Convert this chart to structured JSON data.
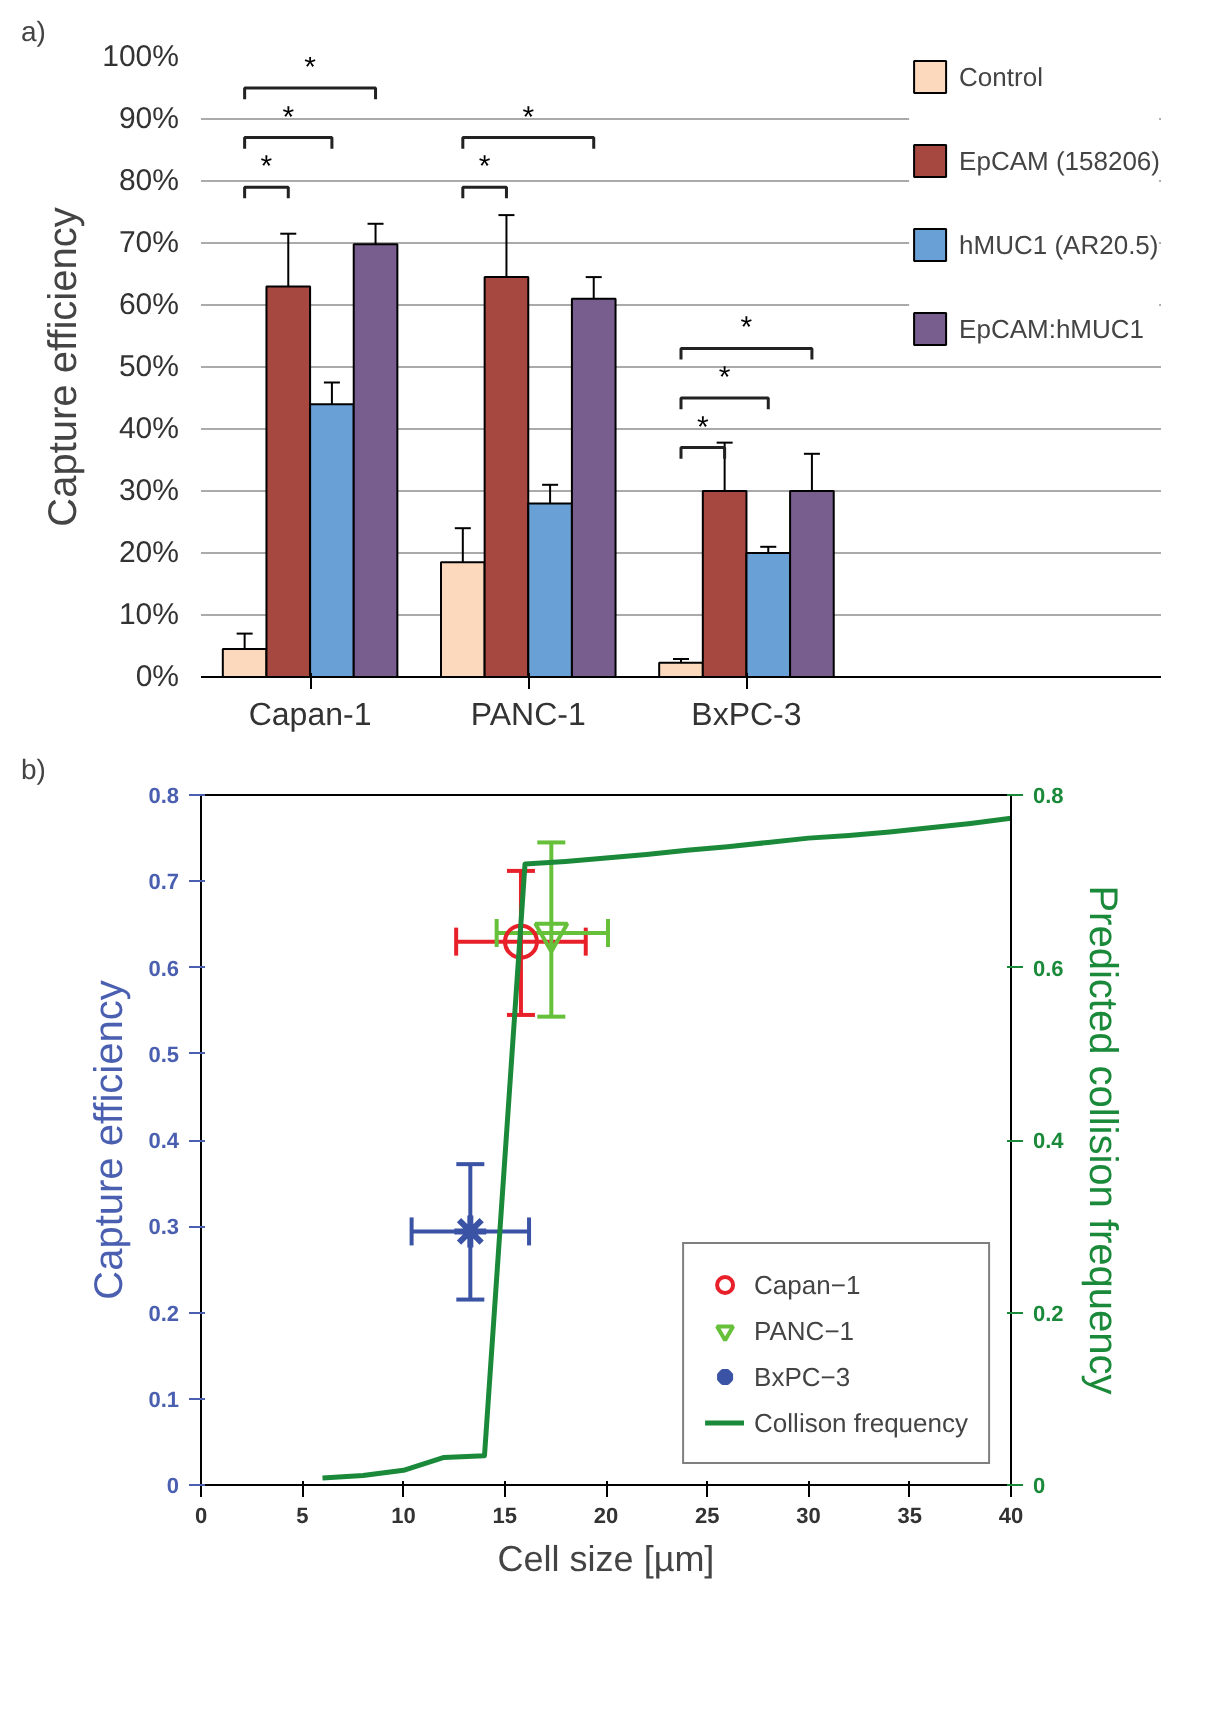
{
  "chart_data": [
    {
      "type": "bar",
      "ylabel": "Capture efficiency",
      "categories": [
        "Capan-1",
        "PANC-1",
        "BxPC-3"
      ],
      "series": [
        {
          "name": "Control",
          "color": "#fcd9bc",
          "values": [
            4.5,
            18.5,
            2.3
          ],
          "errors": [
            2.5,
            5.5,
            0.6
          ]
        },
        {
          "name": "EpCAM (158206)",
          "color": "#a64740",
          "values": [
            63,
            64.5,
            30
          ],
          "errors": [
            8.5,
            10,
            7.8
          ]
        },
        {
          "name": "hMUC1 (AR20.5)",
          "color": "#69a1d6",
          "values": [
            44,
            28,
            20
          ],
          "errors": [
            3.5,
            3,
            1
          ]
        },
        {
          "name": "EpCAM:hMUC1",
          "color": "#775e8f",
          "values": [
            69.8,
            61,
            30
          ],
          "errors": [
            3.3,
            3.5,
            6
          ]
        }
      ],
      "ylim": [
        0,
        100
      ],
      "yticks": [
        {
          "value": 0,
          "label": "0%"
        },
        {
          "value": 10,
          "label": "10%"
        },
        {
          "value": 20,
          "label": "20%"
        },
        {
          "value": 30,
          "label": "30%"
        },
        {
          "value": 40,
          "label": "40%"
        },
        {
          "value": 50,
          "label": "50%"
        },
        {
          "value": 60,
          "label": "60%"
        },
        {
          "value": 70,
          "label": "70%"
        },
        {
          "value": 80,
          "label": "80%"
        },
        {
          "value": 90,
          "label": "90%"
        },
        {
          "value": 100,
          "label": "100%"
        }
      ],
      "grid": "y",
      "legend": "right",
      "annotations": [
        "a)",
        "*",
        "*",
        "*",
        "*",
        "*",
        "*",
        "*",
        "*"
      ]
    },
    {
      "type": "scatter",
      "xlabel": "Cell size [µm]",
      "ylabel": "Capture efficiency",
      "y2label": "Predicted collision frequency",
      "series": [
        {
          "name": "Capan−1",
          "color": "#e8202a",
          "marker": "circle",
          "x": [
            15.8
          ],
          "values": [
            0.63
          ],
          "errors": [
            [
              0.545,
              0.712
            ]
          ],
          "xerrors": [
            [
              12.6,
              19.0
            ]
          ]
        },
        {
          "name": "PANC−1",
          "color": "#66c03a",
          "marker": "triangle",
          "x": [
            17.3
          ],
          "values": [
            0.64
          ],
          "errors": [
            [
              0.543,
              0.745
            ]
          ],
          "xerrors": [
            [
              14.6,
              20.1
            ]
          ]
        },
        {
          "name": "BxPC−3",
          "color": "#3a53a4",
          "marker": "cross",
          "x": [
            13.3
          ],
          "values": [
            0.294
          ],
          "errors": [
            [
              0.215,
              0.372
            ]
          ],
          "xerrors": [
            [
              10.4,
              16.2
            ]
          ]
        },
        {
          "name": "Collison frequency",
          "type": "line",
          "axis": "y2",
          "color": "#1a8a3a",
          "marker": "none",
          "x": [
            6,
            8,
            10,
            12,
            14,
            16,
            18,
            20,
            22,
            24,
            26,
            28,
            30,
            32,
            34,
            36,
            38,
            40
          ],
          "values": [
            0.008,
            0.011,
            0.017,
            0.032,
            0.034,
            0.72,
            0.723,
            0.727,
            0.731,
            0.736,
            0.74,
            0.745,
            0.75,
            0.753,
            0.757,
            0.762,
            0.767,
            0.773
          ]
        }
      ],
      "xlim": [
        0,
        40
      ],
      "xticks": [
        0,
        5,
        10,
        15,
        20,
        25,
        30,
        35,
        40
      ],
      "ylim": [
        0,
        0.8
      ],
      "yticks": [
        0,
        0.1,
        0.2,
        0.3,
        0.4,
        0.5,
        0.6,
        0.7,
        0.8
      ],
      "y2lim": [
        0,
        0.8
      ],
      "y2ticks": [
        0,
        0.2,
        0.4,
        0.6,
        0.8
      ],
      "grid": false,
      "legend": "bottom right",
      "annotations": [
        "b)"
      ]
    }
  ]
}
